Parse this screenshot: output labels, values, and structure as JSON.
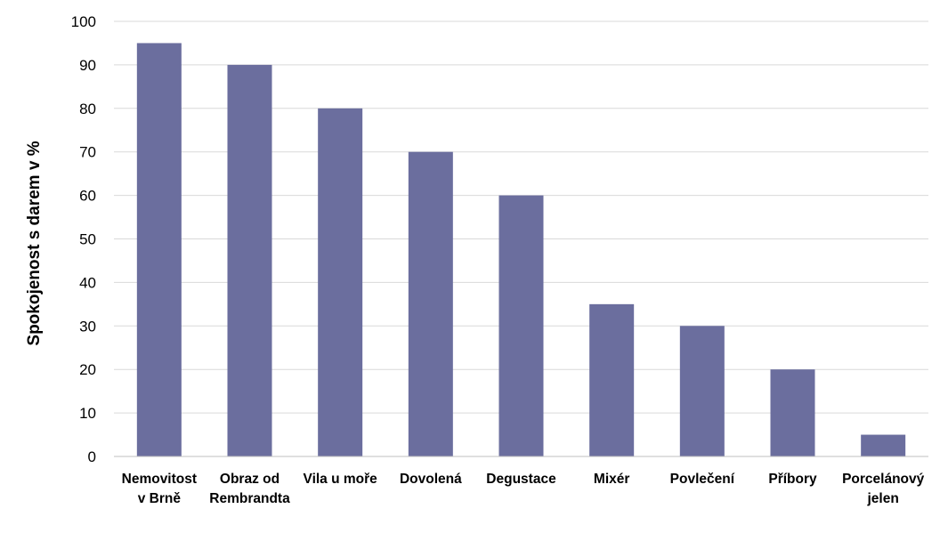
{
  "chart_data": {
    "type": "bar",
    "title": "",
    "xlabel": "",
    "ylabel": "Spokojenost s darem v %",
    "ylim": [
      0,
      100
    ],
    "yticks": [
      0,
      10,
      20,
      30,
      40,
      50,
      60,
      70,
      80,
      90,
      100
    ],
    "grid": true,
    "legend": "none",
    "bar_color": "#6b6e9e",
    "grid_color": "#d9d9d9",
    "axis_color": "#bfbfbf",
    "categories": [
      [
        "Nemovitost",
        "v Brně"
      ],
      [
        "Obraz od",
        "Rembrandta"
      ],
      [
        "Vila u moře"
      ],
      [
        "Dovolená"
      ],
      [
        "Degustace"
      ],
      [
        "Mixér"
      ],
      [
        "Povlečení"
      ],
      [
        "Příbory"
      ],
      [
        "Porcelánový",
        "jelen"
      ]
    ],
    "values": [
      95,
      90,
      80,
      70,
      60,
      35,
      30,
      20,
      5
    ]
  }
}
